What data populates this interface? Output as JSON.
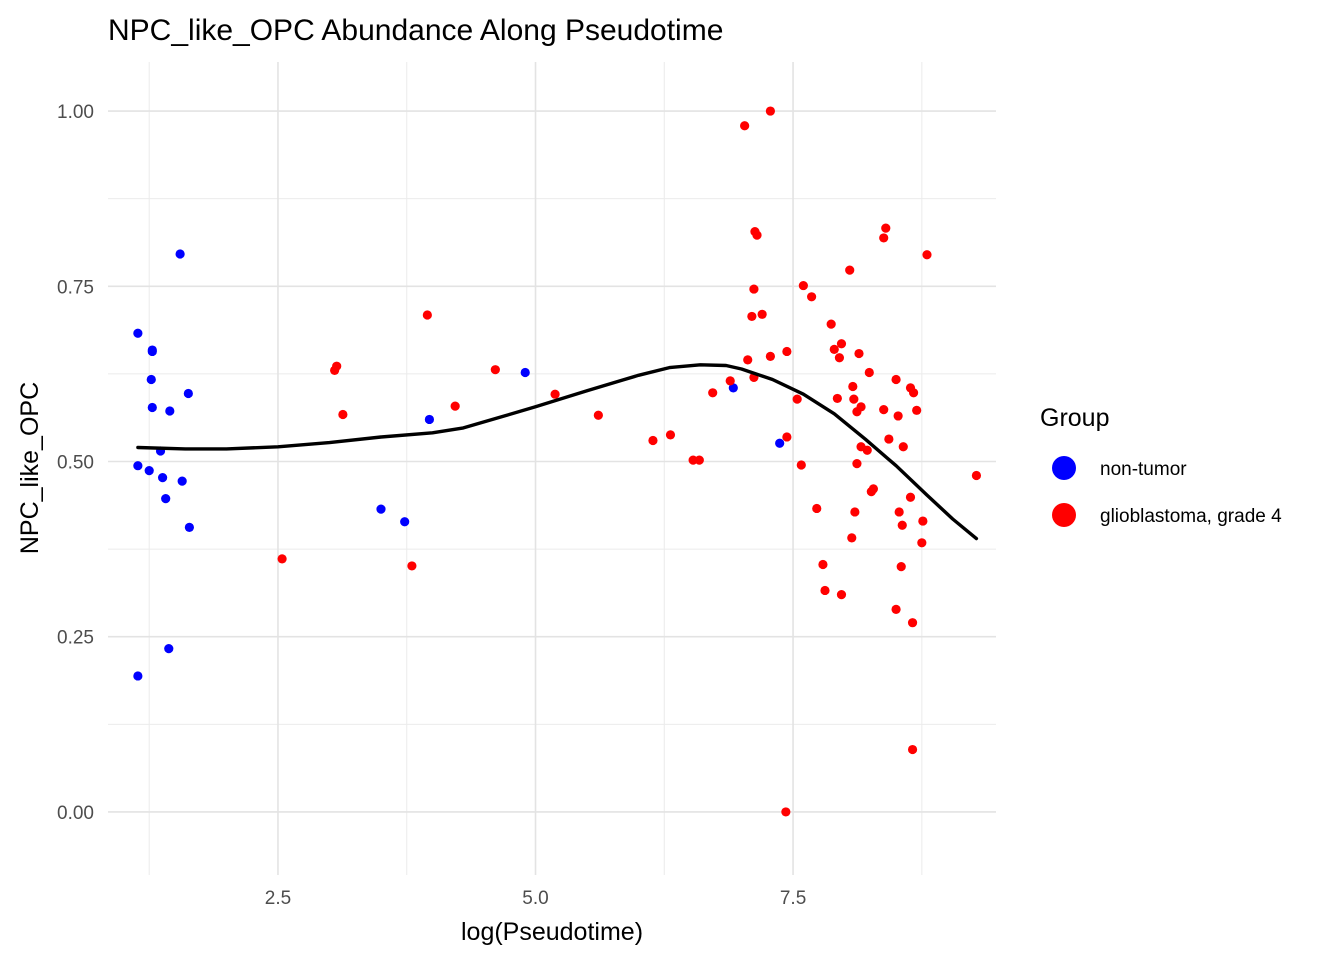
{
  "chart_data": {
    "type": "scatter",
    "title": "NPC_like_OPC Abundance Along Pseudotime",
    "xlabel": "log(Pseudotime)",
    "ylabel": "NPC_like_OPC",
    "xlim": [
      0.85,
      9.47
    ],
    "ylim": [
      -0.09,
      1.07
    ],
    "x_ticks": [
      2.5,
      5.0,
      7.5
    ],
    "y_ticks": [
      0.0,
      0.25,
      0.5,
      0.75,
      1.0
    ],
    "x_tick_labels": [
      "2.5",
      "5.0",
      "7.5"
    ],
    "y_tick_labels": [
      "0.00",
      "0.25",
      "0.50",
      "0.75",
      "1.00"
    ],
    "grid": true,
    "legend": {
      "title": "Group",
      "position": "right",
      "entries": [
        {
          "label": "non-tumor",
          "color": "#0000ff"
        },
        {
          "label": "glioblastoma, grade 4",
          "color": "#ff0000"
        }
      ]
    },
    "series": [
      {
        "name": "non-tumor",
        "color": "#0000ff",
        "points": [
          [
            1.14,
            0.683
          ],
          [
            1.28,
            0.659
          ],
          [
            1.28,
            0.657
          ],
          [
            1.27,
            0.617
          ],
          [
            1.28,
            0.577
          ],
          [
            1.14,
            0.494
          ],
          [
            1.25,
            0.487
          ],
          [
            1.36,
            0.515
          ],
          [
            1.38,
            0.477
          ],
          [
            1.41,
            0.447
          ],
          [
            1.45,
            0.572
          ],
          [
            1.55,
            0.796
          ],
          [
            1.57,
            0.472
          ],
          [
            1.63,
            0.597
          ],
          [
            1.64,
            0.406
          ],
          [
            1.14,
            0.194
          ],
          [
            1.44,
            0.233
          ],
          [
            3.5,
            0.432
          ],
          [
            3.73,
            0.414
          ],
          [
            3.97,
            0.56
          ],
          [
            4.9,
            0.627
          ],
          [
            6.92,
            0.605
          ],
          [
            7.37,
            0.526
          ]
        ]
      },
      {
        "name": "glioblastoma, grade 4",
        "color": "#ff0000",
        "points": [
          [
            2.54,
            0.361
          ],
          [
            3.05,
            0.63
          ],
          [
            3.07,
            0.636
          ],
          [
            3.13,
            0.567
          ],
          [
            3.8,
            0.351
          ],
          [
            3.95,
            0.709
          ],
          [
            4.22,
            0.579
          ],
          [
            4.61,
            0.631
          ],
          [
            5.19,
            0.596
          ],
          [
            5.61,
            0.566
          ],
          [
            6.14,
            0.53
          ],
          [
            6.31,
            0.538
          ],
          [
            6.53,
            0.502
          ],
          [
            6.59,
            0.502
          ],
          [
            6.72,
            0.598
          ],
          [
            6.89,
            0.615
          ],
          [
            7.03,
            0.979
          ],
          [
            7.06,
            0.645
          ],
          [
            7.1,
            0.707
          ],
          [
            7.12,
            0.746
          ],
          [
            7.12,
            0.62
          ],
          [
            7.13,
            0.828
          ],
          [
            7.15,
            0.823
          ],
          [
            7.2,
            0.71
          ],
          [
            7.28,
            1.0
          ],
          [
            7.28,
            0.65
          ],
          [
            7.43,
            0.0
          ],
          [
            7.44,
            0.535
          ],
          [
            7.44,
            0.657
          ],
          [
            7.54,
            0.589
          ],
          [
            7.58,
            0.495
          ],
          [
            7.6,
            0.751
          ],
          [
            7.68,
            0.735
          ],
          [
            7.73,
            0.433
          ],
          [
            7.79,
            0.353
          ],
          [
            7.81,
            0.316
          ],
          [
            7.87,
            0.696
          ],
          [
            7.9,
            0.66
          ],
          [
            7.93,
            0.59
          ],
          [
            7.95,
            0.648
          ],
          [
            7.97,
            0.31
          ],
          [
            7.97,
            0.668
          ],
          [
            8.05,
            0.773
          ],
          [
            8.07,
            0.391
          ],
          [
            8.08,
            0.607
          ],
          [
            8.09,
            0.589
          ],
          [
            8.1,
            0.428
          ],
          [
            8.12,
            0.571
          ],
          [
            8.12,
            0.497
          ],
          [
            8.14,
            0.654
          ],
          [
            8.16,
            0.578
          ],
          [
            8.16,
            0.521
          ],
          [
            8.22,
            0.516
          ],
          [
            8.24,
            0.627
          ],
          [
            8.26,
            0.457
          ],
          [
            8.28,
            0.461
          ],
          [
            8.38,
            0.819
          ],
          [
            8.38,
            0.574
          ],
          [
            8.4,
            0.833
          ],
          [
            8.43,
            0.532
          ],
          [
            8.5,
            0.289
          ],
          [
            8.5,
            0.617
          ],
          [
            8.52,
            0.565
          ],
          [
            8.53,
            0.428
          ],
          [
            8.55,
            0.35
          ],
          [
            8.56,
            0.409
          ],
          [
            8.57,
            0.521
          ],
          [
            8.64,
            0.605
          ],
          [
            8.64,
            0.449
          ],
          [
            8.66,
            0.089
          ],
          [
            8.66,
            0.27
          ],
          [
            8.67,
            0.598
          ],
          [
            8.7,
            0.573
          ],
          [
            8.75,
            0.384
          ],
          [
            8.76,
            0.415
          ],
          [
            8.8,
            0.795
          ],
          [
            9.28,
            0.48
          ]
        ]
      }
    ],
    "smooth_line": {
      "color": "#000000",
      "points": [
        [
          1.14,
          0.52
        ],
        [
          1.6,
          0.518
        ],
        [
          2.0,
          0.518
        ],
        [
          2.5,
          0.521
        ],
        [
          3.0,
          0.527
        ],
        [
          3.5,
          0.535
        ],
        [
          4.0,
          0.541
        ],
        [
          4.3,
          0.548
        ],
        [
          4.7,
          0.565
        ],
        [
          5.0,
          0.578
        ],
        [
          5.5,
          0.601
        ],
        [
          6.0,
          0.623
        ],
        [
          6.3,
          0.634
        ],
        [
          6.6,
          0.638
        ],
        [
          6.85,
          0.637
        ],
        [
          7.0,
          0.632
        ],
        [
          7.3,
          0.617
        ],
        [
          7.6,
          0.596
        ],
        [
          7.9,
          0.568
        ],
        [
          8.2,
          0.532
        ],
        [
          8.5,
          0.494
        ],
        [
          8.8,
          0.452
        ],
        [
          9.05,
          0.418
        ],
        [
          9.28,
          0.39
        ]
      ]
    }
  }
}
